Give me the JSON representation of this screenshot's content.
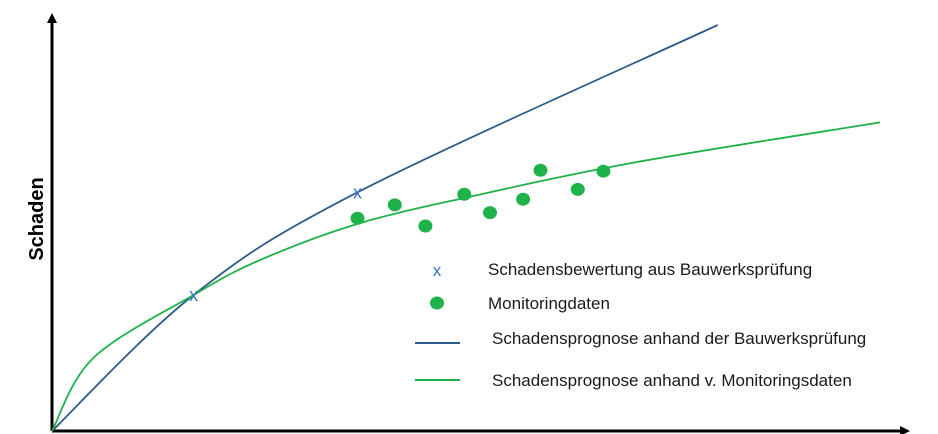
{
  "chart_data": {
    "type": "line",
    "title": "",
    "xlabel": "",
    "ylabel": "Schaden",
    "xlim": [
      0,
      100
    ],
    "ylim": [
      0,
      100
    ],
    "grid": false,
    "legend_position": "lower-right",
    "colors": {
      "blue": "#2e5c8a",
      "green": "#1fb24a",
      "marker_blue": "#2f76c0"
    },
    "series": [
      {
        "name": "Schadensbewertung aus Bauwerksprüfung",
        "kind": "marker-x",
        "color": "#2f76c0",
        "points": [
          [
            17.1,
            33.5
          ],
          [
            36.9,
            58.8
          ]
        ]
      },
      {
        "name": "Monitoringdaten",
        "kind": "dots",
        "color": "#1fb24a",
        "points": [
          [
            36.9,
            52.4
          ],
          [
            41.4,
            55.7
          ],
          [
            45.1,
            50.5
          ],
          [
            49.8,
            58.3
          ],
          [
            52.9,
            53.8
          ],
          [
            56.9,
            57.1
          ],
          [
            59.0,
            64.2
          ],
          [
            63.5,
            59.5
          ],
          [
            66.6,
            64.0
          ]
        ]
      },
      {
        "name": "Schadensprognose anhand der Bauwerksprüfung",
        "kind": "line",
        "color": "#2e5c8a",
        "points": [
          [
            0,
            0
          ],
          [
            17.1,
            33.5
          ],
          [
            36.9,
            58.8
          ],
          [
            80.4,
            100
          ]
        ]
      },
      {
        "name": "Schadensprognose anhand v. Monitoringsdaten",
        "kind": "line",
        "color": "#1fb24a",
        "points": [
          [
            0,
            0
          ],
          [
            5,
            18
          ],
          [
            17.1,
            33.5
          ],
          [
            25,
            42
          ],
          [
            36.9,
            51
          ],
          [
            50,
            57.5
          ],
          [
            70,
            66
          ],
          [
            100,
            76
          ]
        ]
      }
    ]
  }
}
